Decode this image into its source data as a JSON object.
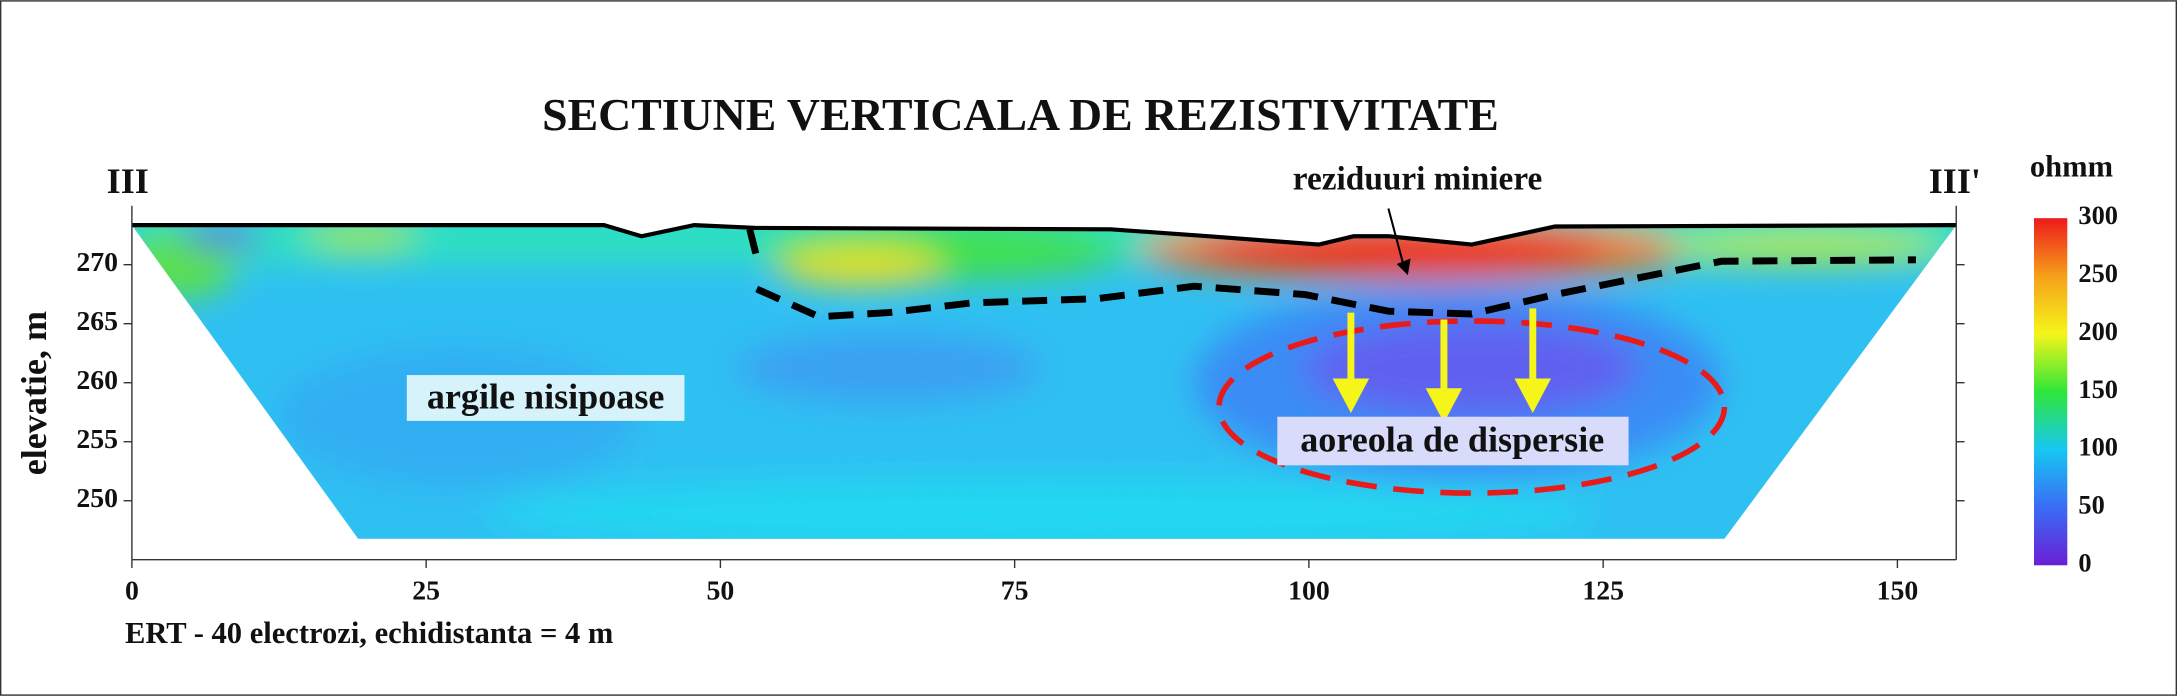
{
  "chart_data": {
    "type": "section",
    "title": "SECTIUNE VERTICALA DE REZISTIVITATE",
    "left_label": "III",
    "right_label": "III'",
    "ylabel": "elevatie, m",
    "footer": "ERT - 40 electrozi, echidistanta = 4 m",
    "annotations": [
      "reziduuri miniere",
      "argile nisipoase",
      "aoreola de dispersie"
    ],
    "xlim": [
      0,
      155
    ],
    "xticks": [
      0,
      25,
      50,
      75,
      100,
      125,
      150
    ],
    "ylim": [
      245,
      275
    ],
    "yticks": [
      250,
      255,
      260,
      265,
      270
    ],
    "colorbar": {
      "label": "ohmm",
      "clim": [
        0,
        300
      ],
      "ticks": [
        0,
        50,
        100,
        150,
        200,
        250,
        300
      ],
      "colors": [
        "#6a1fd6",
        "#3a6cf5",
        "#17c7f2",
        "#2fe63a",
        "#f5f51a",
        "#f5a01a",
        "#ee1a1a"
      ]
    }
  }
}
